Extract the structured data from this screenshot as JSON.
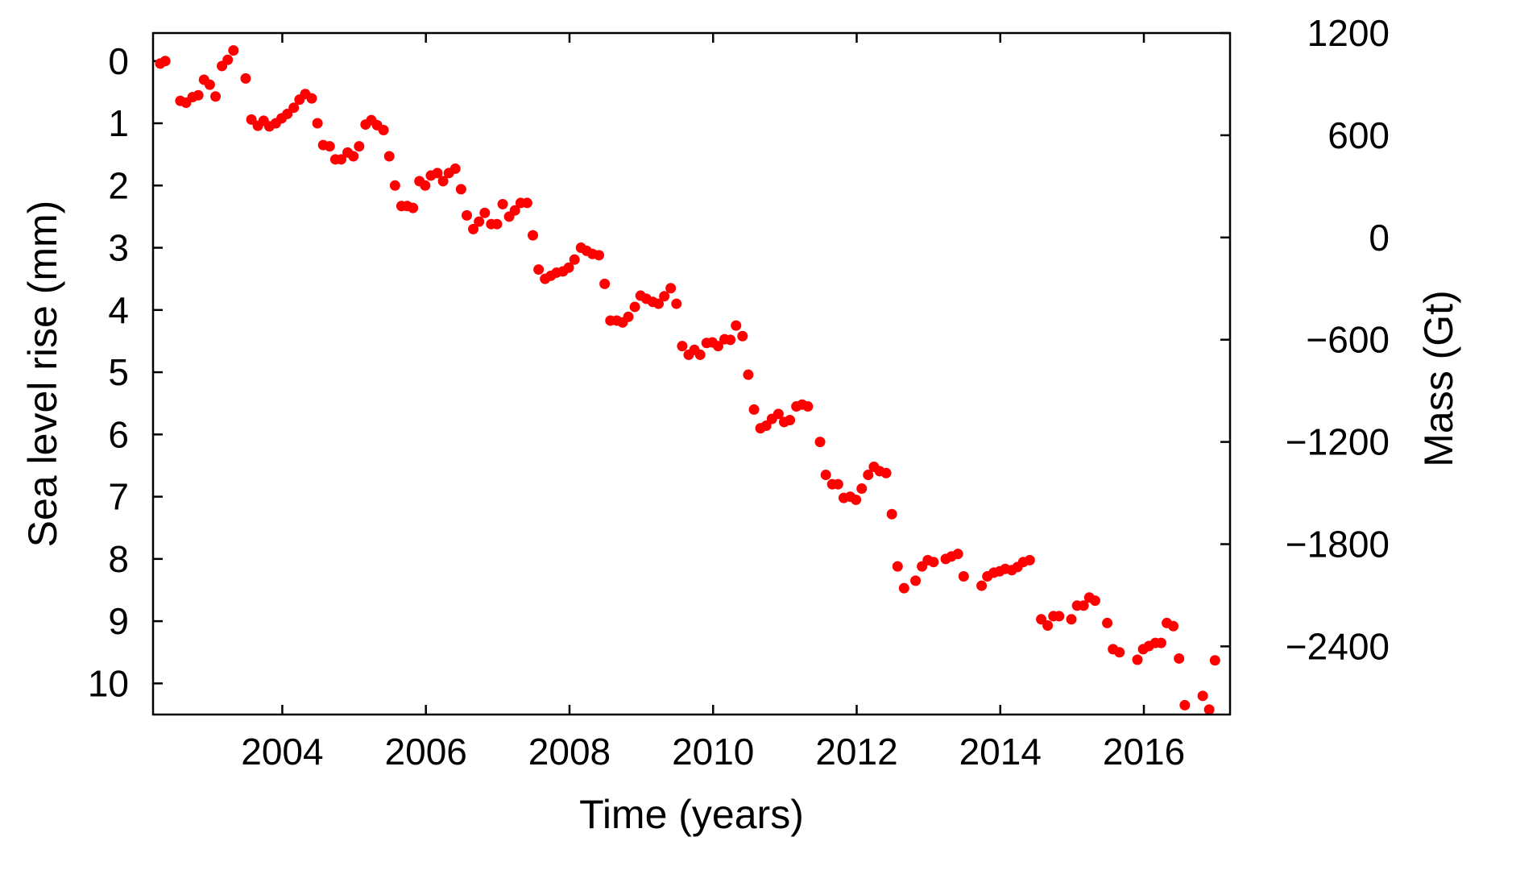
{
  "chart_data": {
    "type": "scatter",
    "title": "",
    "xlabel": "Time (years)",
    "ylabel": "Sea level rise (mm)",
    "ylabel_right": "Mass (Gt)",
    "xlim": [
      2002.2,
      2017.2
    ],
    "ylim": [
      -0.45,
      10.5
    ],
    "y_inverted": true,
    "ylim_right": [
      1200,
      -2800
    ],
    "x_ticks": [
      2004,
      2006,
      2008,
      2010,
      2012,
      2014,
      2016
    ],
    "x_tick_labels": [
      "2004",
      "2006",
      "2008",
      "2010",
      "2012",
      "2014",
      "2016"
    ],
    "y_ticks": [
      0,
      1,
      2,
      3,
      4,
      5,
      6,
      7,
      8,
      9,
      10
    ],
    "y_tick_labels": [
      "0",
      "1",
      "2",
      "3",
      "4",
      "5",
      "6",
      "7",
      "8",
      "9",
      "10"
    ],
    "y_right_ticks": [
      1200,
      600,
      0,
      -600,
      -1200,
      -1800,
      -2400
    ],
    "y_right_tick_labels": [
      "1200",
      "600",
      "0",
      "−600",
      "−1200",
      "−1800",
      "−2400"
    ],
    "grid": false,
    "marker_color": "#ff0000",
    "points": [
      [
        2002.3,
        0.04
      ],
      [
        2002.37,
        0.0
      ],
      [
        2002.58,
        0.64
      ],
      [
        2002.66,
        0.67
      ],
      [
        2002.75,
        0.58
      ],
      [
        2002.83,
        0.55
      ],
      [
        2002.91,
        0.3
      ],
      [
        2002.99,
        0.38
      ],
      [
        2003.07,
        0.57
      ],
      [
        2003.16,
        0.08
      ],
      [
        2003.24,
        -0.02
      ],
      [
        2003.32,
        -0.17
      ],
      [
        2003.49,
        0.28
      ],
      [
        2003.57,
        0.94
      ],
      [
        2003.66,
        1.04
      ],
      [
        2003.74,
        0.96
      ],
      [
        2003.82,
        1.05
      ],
      [
        2003.91,
        1.0
      ],
      [
        2003.99,
        0.92
      ],
      [
        2004.07,
        0.85
      ],
      [
        2004.16,
        0.75
      ],
      [
        2004.24,
        0.62
      ],
      [
        2004.32,
        0.53
      ],
      [
        2004.41,
        0.6
      ],
      [
        2004.49,
        1.0
      ],
      [
        2004.57,
        1.35
      ],
      [
        2004.66,
        1.37
      ],
      [
        2004.74,
        1.58
      ],
      [
        2004.82,
        1.58
      ],
      [
        2004.91,
        1.47
      ],
      [
        2004.99,
        1.53
      ],
      [
        2005.07,
        1.37
      ],
      [
        2005.16,
        1.02
      ],
      [
        2005.24,
        0.95
      ],
      [
        2005.32,
        1.03
      ],
      [
        2005.41,
        1.11
      ],
      [
        2005.49,
        1.53
      ],
      [
        2005.57,
        2.0
      ],
      [
        2005.66,
        2.33
      ],
      [
        2005.74,
        2.33
      ],
      [
        2005.82,
        2.36
      ],
      [
        2005.91,
        1.93
      ],
      [
        2005.99,
        2.0
      ],
      [
        2006.07,
        1.84
      ],
      [
        2006.16,
        1.8
      ],
      [
        2006.24,
        1.93
      ],
      [
        2006.32,
        1.8
      ],
      [
        2006.41,
        1.73
      ],
      [
        2006.49,
        2.06
      ],
      [
        2006.57,
        2.48
      ],
      [
        2006.66,
        2.7
      ],
      [
        2006.74,
        2.58
      ],
      [
        2006.82,
        2.44
      ],
      [
        2006.91,
        2.62
      ],
      [
        2006.99,
        2.62
      ],
      [
        2007.07,
        2.3
      ],
      [
        2007.16,
        2.5
      ],
      [
        2007.24,
        2.4
      ],
      [
        2007.32,
        2.28
      ],
      [
        2007.41,
        2.28
      ],
      [
        2007.49,
        2.8
      ],
      [
        2007.57,
        3.35
      ],
      [
        2007.66,
        3.5
      ],
      [
        2007.74,
        3.45
      ],
      [
        2007.82,
        3.4
      ],
      [
        2007.91,
        3.38
      ],
      [
        2007.99,
        3.32
      ],
      [
        2008.07,
        3.19
      ],
      [
        2008.16,
        3.0
      ],
      [
        2008.24,
        3.05
      ],
      [
        2008.32,
        3.1
      ],
      [
        2008.41,
        3.12
      ],
      [
        2008.49,
        3.58
      ],
      [
        2008.57,
        4.17
      ],
      [
        2008.66,
        4.17
      ],
      [
        2008.74,
        4.2
      ],
      [
        2008.82,
        4.11
      ],
      [
        2008.91,
        3.95
      ],
      [
        2008.99,
        3.77
      ],
      [
        2009.07,
        3.82
      ],
      [
        2009.16,
        3.87
      ],
      [
        2009.24,
        3.9
      ],
      [
        2009.32,
        3.78
      ],
      [
        2009.41,
        3.65
      ],
      [
        2009.49,
        3.9
      ],
      [
        2009.57,
        4.58
      ],
      [
        2009.66,
        4.72
      ],
      [
        2009.74,
        4.64
      ],
      [
        2009.82,
        4.72
      ],
      [
        2009.91,
        4.53
      ],
      [
        2009.99,
        4.52
      ],
      [
        2010.07,
        4.58
      ],
      [
        2010.16,
        4.47
      ],
      [
        2010.24,
        4.48
      ],
      [
        2010.32,
        4.25
      ],
      [
        2010.41,
        4.42
      ],
      [
        2010.49,
        5.04
      ],
      [
        2010.57,
        5.6
      ],
      [
        2010.66,
        5.9
      ],
      [
        2010.74,
        5.86
      ],
      [
        2010.82,
        5.75
      ],
      [
        2010.91,
        5.67
      ],
      [
        2010.99,
        5.8
      ],
      [
        2011.07,
        5.77
      ],
      [
        2011.16,
        5.55
      ],
      [
        2011.24,
        5.52
      ],
      [
        2011.32,
        5.55
      ],
      [
        2011.49,
        6.12
      ],
      [
        2011.57,
        6.65
      ],
      [
        2011.66,
        6.8
      ],
      [
        2011.74,
        6.8
      ],
      [
        2011.82,
        7.02
      ],
      [
        2011.91,
        7.0
      ],
      [
        2011.99,
        7.05
      ],
      [
        2012.07,
        6.87
      ],
      [
        2012.16,
        6.65
      ],
      [
        2012.24,
        6.52
      ],
      [
        2012.32,
        6.59
      ],
      [
        2012.41,
        6.62
      ],
      [
        2012.49,
        7.28
      ],
      [
        2012.57,
        8.12
      ],
      [
        2012.66,
        8.47
      ],
      [
        2012.82,
        8.35
      ],
      [
        2012.91,
        8.12
      ],
      [
        2012.99,
        8.02
      ],
      [
        2013.07,
        8.05
      ],
      [
        2013.24,
        8.0
      ],
      [
        2013.32,
        7.96
      ],
      [
        2013.41,
        7.92
      ],
      [
        2013.49,
        8.28
      ],
      [
        2013.74,
        8.43
      ],
      [
        2013.82,
        8.28
      ],
      [
        2013.91,
        8.22
      ],
      [
        2013.99,
        8.2
      ],
      [
        2014.07,
        8.16
      ],
      [
        2014.16,
        8.18
      ],
      [
        2014.24,
        8.13
      ],
      [
        2014.32,
        8.05
      ],
      [
        2014.41,
        8.02
      ],
      [
        2014.57,
        8.97
      ],
      [
        2014.66,
        9.07
      ],
      [
        2014.74,
        8.92
      ],
      [
        2014.82,
        8.92
      ],
      [
        2014.99,
        8.97
      ],
      [
        2015.07,
        8.75
      ],
      [
        2015.16,
        8.75
      ],
      [
        2015.24,
        8.62
      ],
      [
        2015.32,
        8.67
      ],
      [
        2015.49,
        9.03
      ],
      [
        2015.57,
        9.45
      ],
      [
        2015.66,
        9.5
      ],
      [
        2015.91,
        9.62
      ],
      [
        2015.99,
        9.45
      ],
      [
        2016.07,
        9.4
      ],
      [
        2016.16,
        9.35
      ],
      [
        2016.24,
        9.35
      ],
      [
        2016.32,
        9.03
      ],
      [
        2016.41,
        9.08
      ],
      [
        2016.49,
        9.6
      ],
      [
        2016.57,
        10.35
      ],
      [
        2016.82,
        10.2
      ],
      [
        2016.91,
        10.42
      ],
      [
        2016.99,
        9.63
      ]
    ]
  }
}
